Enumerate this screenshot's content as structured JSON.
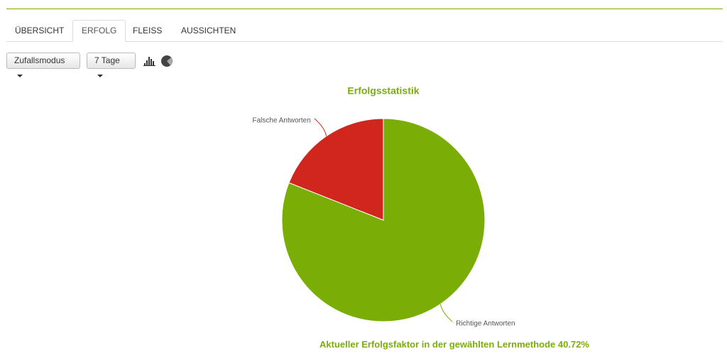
{
  "tabs": [
    "ÜBERSICHT",
    "ERFOLG",
    "FLEISS",
    "AUSSICHTEN"
  ],
  "active_tab": 1,
  "toolbar": {
    "mode_button": "Zufallsmodus",
    "period_button": "7 Tage"
  },
  "chart_data": {
    "type": "pie",
    "title": "Erfolgsstatistik",
    "categories": [
      "Richtige Antworten",
      "Falsche Antworten"
    ],
    "values": [
      81,
      19
    ],
    "colors": [
      "#7aae07",
      "#d1261e"
    ]
  },
  "footer": "Aktueller Erfolgsfaktor in der gewählten Lernmethode 40.72%"
}
